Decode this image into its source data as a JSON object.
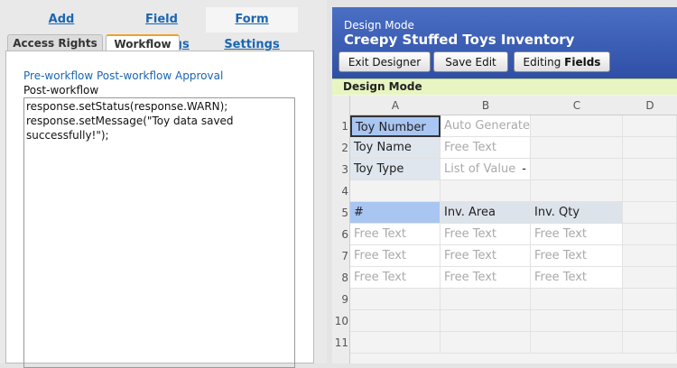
{
  "tabs": [
    "Add Components",
    "Field Settings",
    "Form Settings"
  ],
  "subtabs": [
    "Access Rights",
    "Workflow"
  ],
  "workflow_links": [
    "Pre-workflow",
    "Post-workflow",
    "Approval"
  ],
  "section_label": "Post-workflow",
  "code_lines": [
    "response.setStatus(response.WARN);",
    "response.setMessage(\"Toy data saved",
    "successfully!\");"
  ],
  "designer": {
    "mode": "Design Mode",
    "title": "Creepy Stuffed Toys Inventory",
    "buttons": [
      "Exit Designer",
      "Save Edit"
    ],
    "editing": {
      "prefix": "Editing",
      "bold": "Fields"
    },
    "bar": "Design Mode"
  },
  "grid": {
    "columns": [
      "A",
      "B",
      "C",
      "D"
    ],
    "rows": [
      1,
      2,
      3,
      4,
      5,
      6,
      7,
      8,
      9,
      10,
      11
    ],
    "dropdown_marker": "-",
    "cells": [
      [
        "Toy Number",
        "Auto Generate",
        null,
        null
      ],
      [
        "Toy Name",
        "Free Text",
        null,
        null
      ],
      [
        "Toy Type",
        "List of Value",
        null,
        null
      ],
      [
        null,
        null,
        null,
        null
      ],
      [
        "#",
        "Inv. Area",
        "Inv. Qty",
        null
      ],
      [
        "Free Text",
        "Free Text",
        "Free Text",
        null
      ],
      [
        "Free Text",
        "Free Text",
        "Free Text",
        null
      ],
      [
        "Free Text",
        "Free Text",
        "Free Text",
        null
      ],
      [
        null,
        null,
        null,
        null
      ],
      [
        null,
        null,
        null,
        null
      ],
      [
        null,
        null,
        null,
        null
      ]
    ]
  }
}
